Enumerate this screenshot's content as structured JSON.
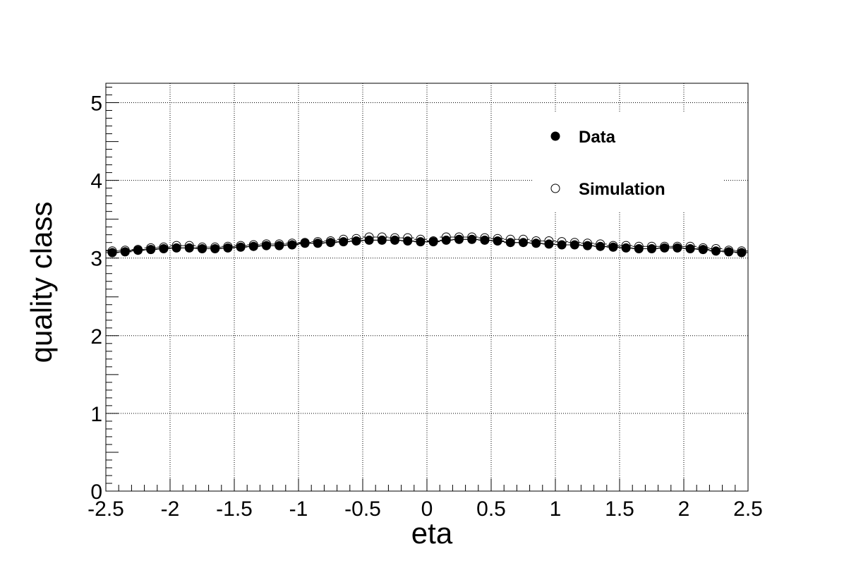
{
  "chart_data": {
    "type": "scatter",
    "xlabel": "eta",
    "ylabel": "quality class",
    "xlim": [
      -2.5,
      2.5
    ],
    "ylim": [
      0,
      5.25
    ],
    "x_ticks": [
      -2.5,
      -2,
      -1.5,
      -1,
      -0.5,
      0,
      0.5,
      1,
      1.5,
      2,
      2.5
    ],
    "x_tick_labels": [
      "-2.5",
      "-2",
      "-1.5",
      "-1",
      "-0.5",
      "0",
      "0.5",
      "1",
      "1.5",
      "2",
      "2.5"
    ],
    "y_ticks": [
      0,
      1,
      2,
      3,
      4,
      5
    ],
    "y_tick_labels": [
      "0",
      "1",
      "2",
      "3",
      "4",
      "5"
    ],
    "grid": true,
    "legend_placement": "top-right",
    "x": [
      -2.45,
      -2.35,
      -2.25,
      -2.15,
      -2.05,
      -1.95,
      -1.85,
      -1.75,
      -1.65,
      -1.55,
      -1.45,
      -1.35,
      -1.25,
      -1.15,
      -1.05,
      -0.95,
      -0.85,
      -0.75,
      -0.65,
      -0.55,
      -0.45,
      -0.35,
      -0.25,
      -0.15,
      -0.05,
      0.05,
      0.15,
      0.25,
      0.35,
      0.45,
      0.55,
      0.65,
      0.75,
      0.85,
      0.95,
      1.05,
      1.15,
      1.25,
      1.35,
      1.45,
      1.55,
      1.65,
      1.75,
      1.85,
      1.95,
      2.05,
      2.15,
      2.25,
      2.35,
      2.45
    ],
    "series": [
      {
        "name": "Data",
        "marker": "filled-circle",
        "color": "#000000",
        "values": [
          3.07,
          3.08,
          3.1,
          3.11,
          3.12,
          3.13,
          3.13,
          3.12,
          3.12,
          3.13,
          3.14,
          3.15,
          3.16,
          3.16,
          3.17,
          3.19,
          3.19,
          3.2,
          3.21,
          3.22,
          3.23,
          3.23,
          3.23,
          3.22,
          3.21,
          3.21,
          3.23,
          3.24,
          3.24,
          3.23,
          3.22,
          3.2,
          3.2,
          3.19,
          3.18,
          3.17,
          3.17,
          3.16,
          3.15,
          3.14,
          3.13,
          3.12,
          3.12,
          3.13,
          3.13,
          3.12,
          3.11,
          3.09,
          3.08,
          3.07
        ]
      },
      {
        "name": "Simulation",
        "marker": "open-circle",
        "color": "#000000",
        "values": [
          3.09,
          3.1,
          3.11,
          3.13,
          3.14,
          3.16,
          3.16,
          3.14,
          3.14,
          3.15,
          3.16,
          3.17,
          3.18,
          3.18,
          3.19,
          3.2,
          3.21,
          3.22,
          3.24,
          3.25,
          3.27,
          3.27,
          3.26,
          3.26,
          3.24,
          3.22,
          3.27,
          3.27,
          3.27,
          3.26,
          3.25,
          3.24,
          3.24,
          3.22,
          3.22,
          3.21,
          3.2,
          3.19,
          3.18,
          3.16,
          3.16,
          3.15,
          3.15,
          3.15,
          3.15,
          3.15,
          3.13,
          3.12,
          3.1,
          3.09
        ]
      }
    ]
  }
}
